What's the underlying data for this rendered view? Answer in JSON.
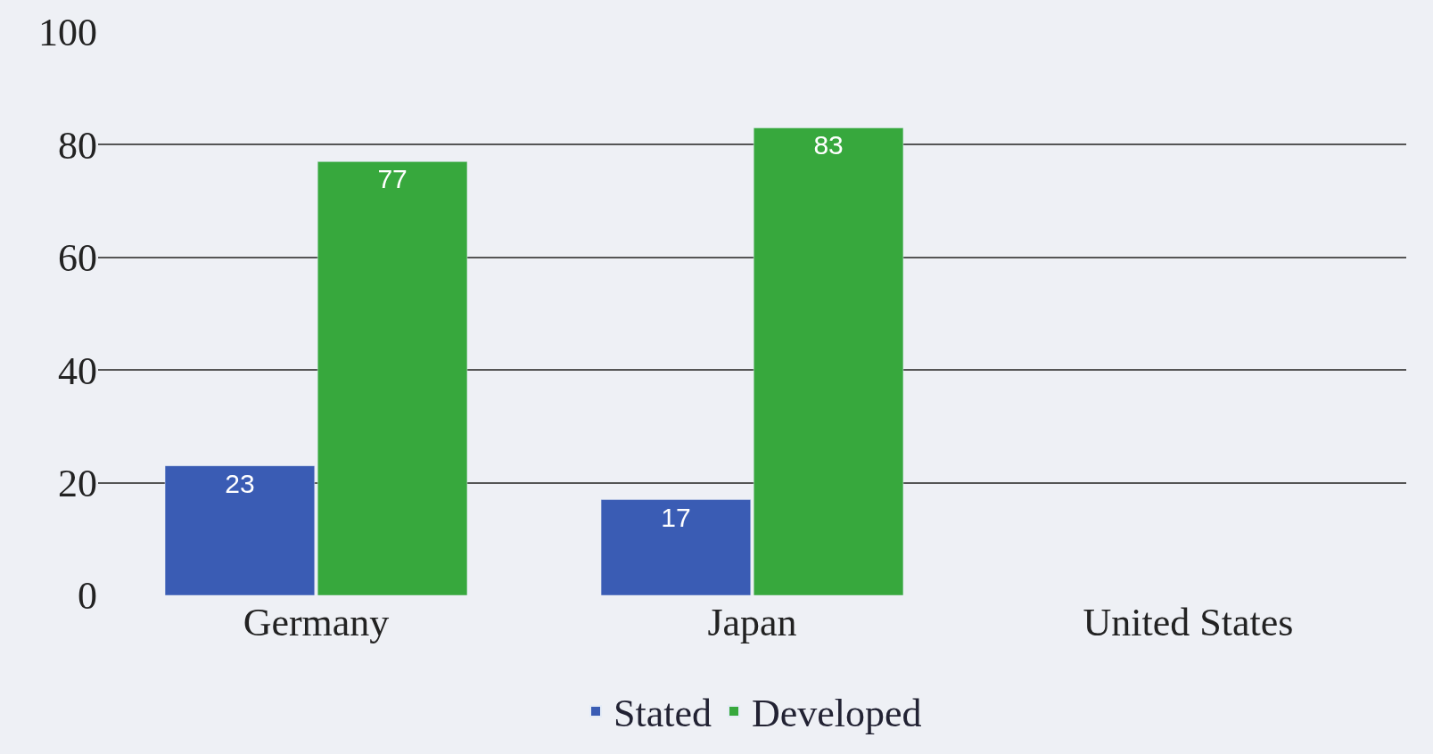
{
  "chart_data": {
    "type": "bar",
    "categories": [
      "Germany",
      "Japan",
      "United States"
    ],
    "series": [
      {
        "name": "Stated",
        "color": "#3a5cb4",
        "values": [
          23,
          17,
          null
        ]
      },
      {
        "name": "Developed",
        "color": "#37a83d",
        "values": [
          77,
          83,
          null
        ]
      }
    ],
    "ylim": [
      0,
      100
    ],
    "yticks": [
      0,
      20,
      40,
      60,
      80,
      100
    ],
    "grid": "y",
    "legend": "bottom",
    "data_labels": true
  }
}
